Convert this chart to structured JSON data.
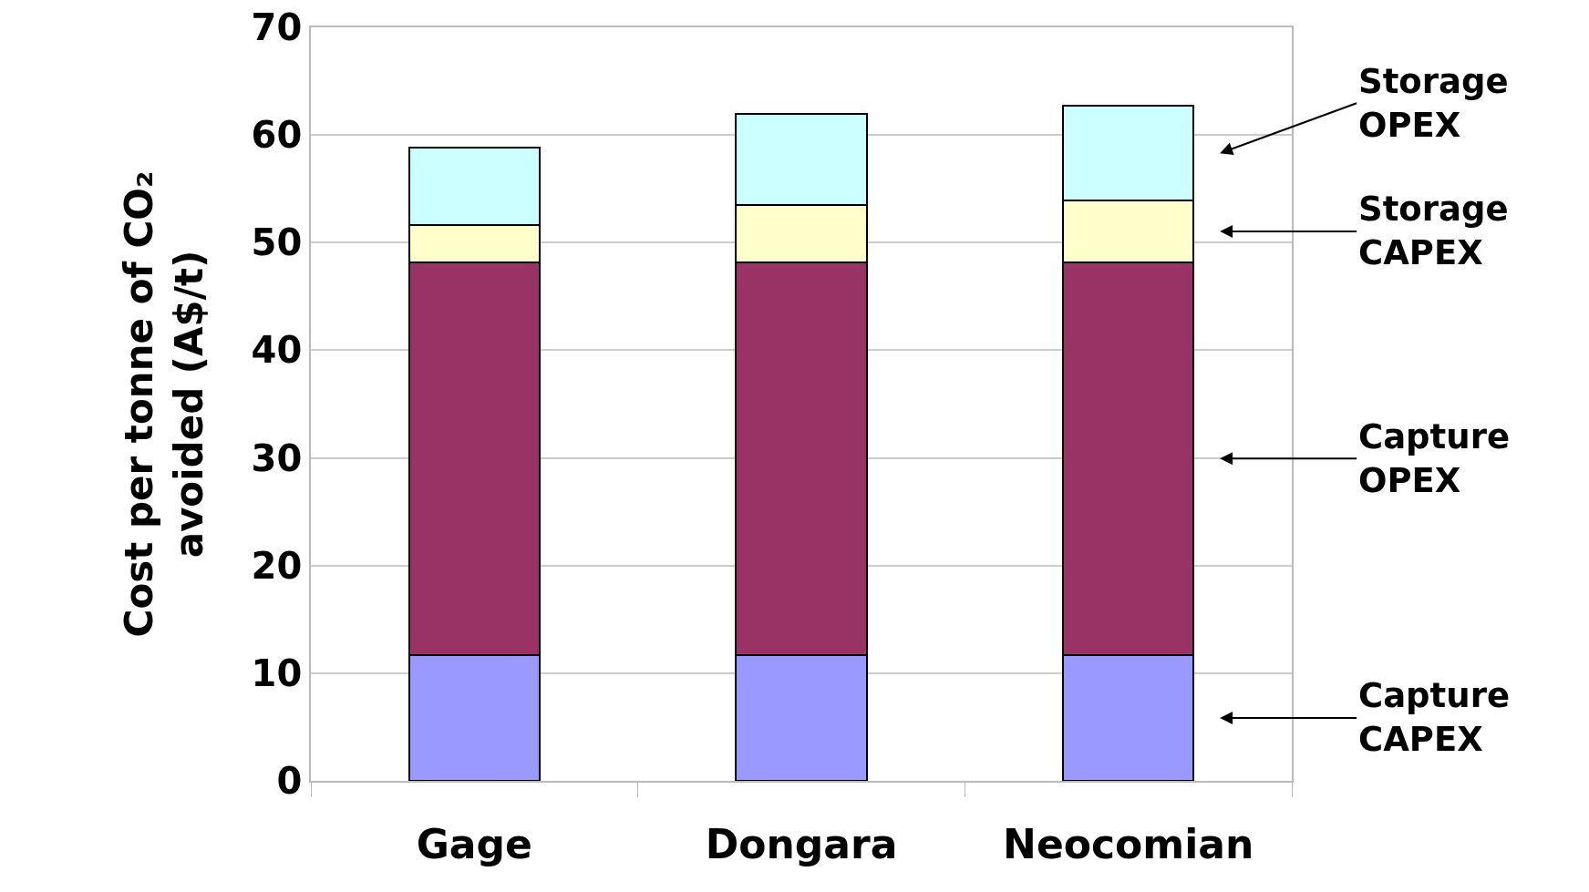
{
  "chart_data": {
    "type": "bar",
    "stacked": true,
    "ylabel": "Cost per tonne of CO₂ avoided (A$/t)",
    "categories": [
      "Gage",
      "Dongara",
      "Neocomian"
    ],
    "series": [
      {
        "name": "Capture CAPEX",
        "color": "#9999ff",
        "values": [
          11.7,
          11.7,
          11.7
        ]
      },
      {
        "name": "Capture OPEX",
        "color": "#993366",
        "values": [
          36.5,
          36.5,
          36.5
        ]
      },
      {
        "name": "Storage CAPEX",
        "color": "#ffffcc",
        "values": [
          3.4,
          5.3,
          5.7
        ]
      },
      {
        "name": "Storage OPEX",
        "color": "#ccffff",
        "values": [
          7.2,
          8.5,
          8.8
        ]
      }
    ],
    "ylim": [
      0,
      70
    ],
    "yticks": [
      0,
      10,
      20,
      30,
      40,
      50,
      60,
      70
    ],
    "grid": "y",
    "legend": "right"
  }
}
